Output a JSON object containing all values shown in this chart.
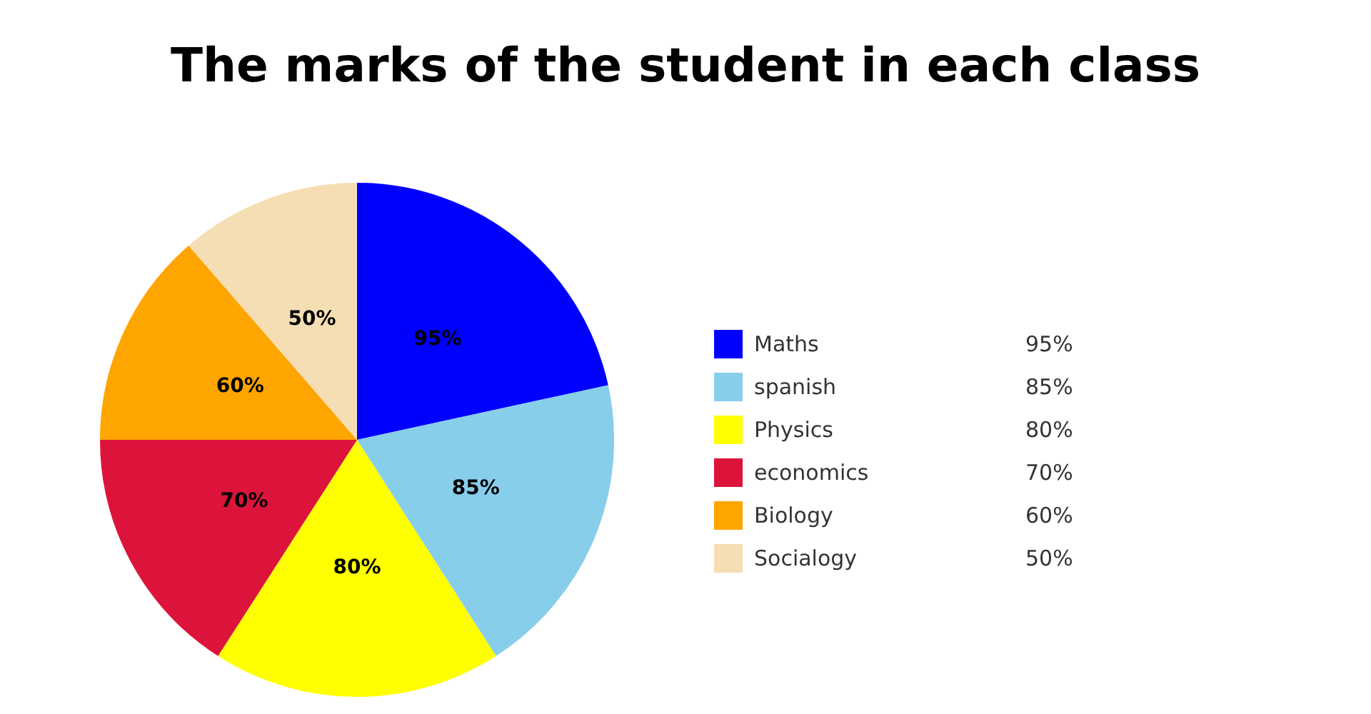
{
  "chart_data": {
    "type": "pie",
    "title": "The marks of the student in each class",
    "categories": [
      "Maths",
      "spanish",
      "Physics",
      "economics",
      "Biology",
      "Socialogy"
    ],
    "values": [
      95,
      85,
      80,
      70,
      60,
      50
    ],
    "value_labels": [
      "95%",
      "85%",
      "80%",
      "70%",
      "60%",
      "50%"
    ],
    "colors": [
      "#0000ff",
      "#87ceeb",
      "#ffff00",
      "#dc143c",
      "#ffa500",
      "#f5deb3"
    ],
    "legend": "right"
  }
}
